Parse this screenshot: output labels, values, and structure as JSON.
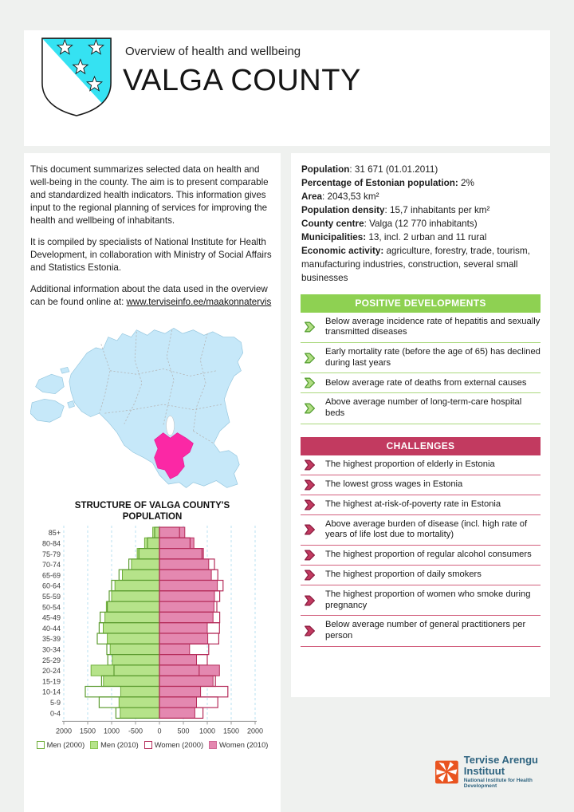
{
  "header": {
    "subtitle": "Overview of health and wellbeing",
    "title": "VALGA COUNTY"
  },
  "intro": {
    "p1": "This document summarizes selected data on health and well-being in the county. The aim is to present comparable and standardized health indicators. This information gives input to the regional planning of services for improving the health and wellbeing of inhabitants.",
    "p2": "It is compiled by specialists of National Institute for Health Development, in collaboration with Ministry of Social Affairs and Statistics Estonia.",
    "p3_prefix": "Additional information about the data used in the overview can be found online at: ",
    "p3_link": "www.terviseinfo.ee/maakonnatervis"
  },
  "facts": [
    {
      "label": "Population",
      "value": ": 31 671 (01.01.2011)"
    },
    {
      "label": "Percentage of Estonian population:",
      "value": " 2%"
    },
    {
      "label": "Area",
      "value": ": 2043,53 km²"
    },
    {
      "label": "Population density",
      "value": ": 15,7 inhabitants per km²"
    },
    {
      "label": "County centre",
      "value": ": Valga (12 770 inhabitants)"
    },
    {
      "label": "Municipalities:",
      "value": " 13, incl. 2 urban and 11 rural"
    },
    {
      "label": "Economic activity:",
      "value": " agriculture, forestry, trade, tourism, manufacturing industries, construction, several small businesses"
    }
  ],
  "positive": {
    "title": "POSITIVE DEVELOPMENTS",
    "items": [
      "Below average incidence rate of hepatitis and sexually transmitted diseases",
      "Early mortality rate (before the age of 65) has declined during last years",
      "Below average rate of deaths from external causes",
      "Above average number of long-term-care hospital beds"
    ]
  },
  "challenges": {
    "title": "CHALLENGES",
    "items": [
      "The highest proportion of elderly in Estonia",
      "The lowest gross wages in Estonia",
      "The highest at-risk-of-poverty rate in Estonia",
      "Above average burden of disease (incl. high rate of years of life lost due to mortality)",
      "The highest proportion of regular alcohol consumers",
      "The highest proportion of daily smokers",
      "The highest proportion of women who smoke during pregnancy",
      "Below average number of general practitioners per person"
    ]
  },
  "chart_data": {
    "type": "bar",
    "variant": "population-pyramid",
    "title": "STRUCTURE OF VALGA COUNTY'S POPULATION",
    "categories": [
      "85+",
      "80-84",
      "75-79",
      "70-74",
      "65-69",
      "60-64",
      "55-59",
      "50-54",
      "45-49",
      "40-44",
      "35-39",
      "30-34",
      "25-29",
      "20-24",
      "15-19",
      "10-14",
      "5-9",
      "0-4"
    ],
    "series": [
      {
        "name": "Men (2000)",
        "style": "outline-green",
        "values": [
          100,
          250,
          430,
          640,
          845,
          1000,
          1050,
          1090,
          1240,
          1260,
          1300,
          1100,
          1080,
          950,
          1210,
          1550,
          1260,
          910
        ]
      },
      {
        "name": "Men (2010)",
        "style": "fill-green",
        "values": [
          140,
          310,
          465,
          585,
          775,
          930,
          1000,
          1110,
          1140,
          1175,
          1090,
          1030,
          985,
          1430,
          1170,
          810,
          845,
          820
        ]
      },
      {
        "name": "Women (2000)",
        "style": "outline-pink",
        "values": [
          420,
          640,
          890,
          1150,
          1220,
          1330,
          1260,
          1200,
          1260,
          1255,
          1240,
          1030,
          1000,
          830,
          1170,
          1430,
          1220,
          910
        ]
      },
      {
        "name": "Women (2010)",
        "style": "fill-pink",
        "values": [
          530,
          720,
          920,
          1030,
          1085,
          1210,
          1150,
          1140,
          1120,
          1000,
          1010,
          630,
          775,
          1255,
          1120,
          860,
          775,
          740
        ]
      }
    ],
    "xlim": [
      -2000,
      2000
    ],
    "x_tick_labels": [
      "2000",
      "1500",
      "1000",
      "-500",
      "0",
      "500",
      "1000",
      "1500",
      "2000"
    ],
    "grid": "dashed-vertical-lightblue",
    "legend_position": "bottom"
  },
  "map": {
    "country": "Estonia",
    "highlighted_region": "Valga county"
  },
  "logo": {
    "title": "Tervise Arengu Instituut",
    "subtitle": "National Institute for Health Development"
  },
  "colors": {
    "page_background": "#eff1ef",
    "positive_banner": "#8ed152",
    "challenges_banner": "#c23a60",
    "bar_green_fill": "#b6e38a",
    "bar_green_stroke": "#6fae3a",
    "bar_pink_fill": "#e488b0",
    "bar_pink_stroke": "#b52d5b",
    "map_blue": "#c6e8f9",
    "map_highlight": "#fb28a5",
    "shield_cyan": "#35e2f2",
    "logo_orange": "#e95420",
    "logo_text": "#2f6480"
  }
}
